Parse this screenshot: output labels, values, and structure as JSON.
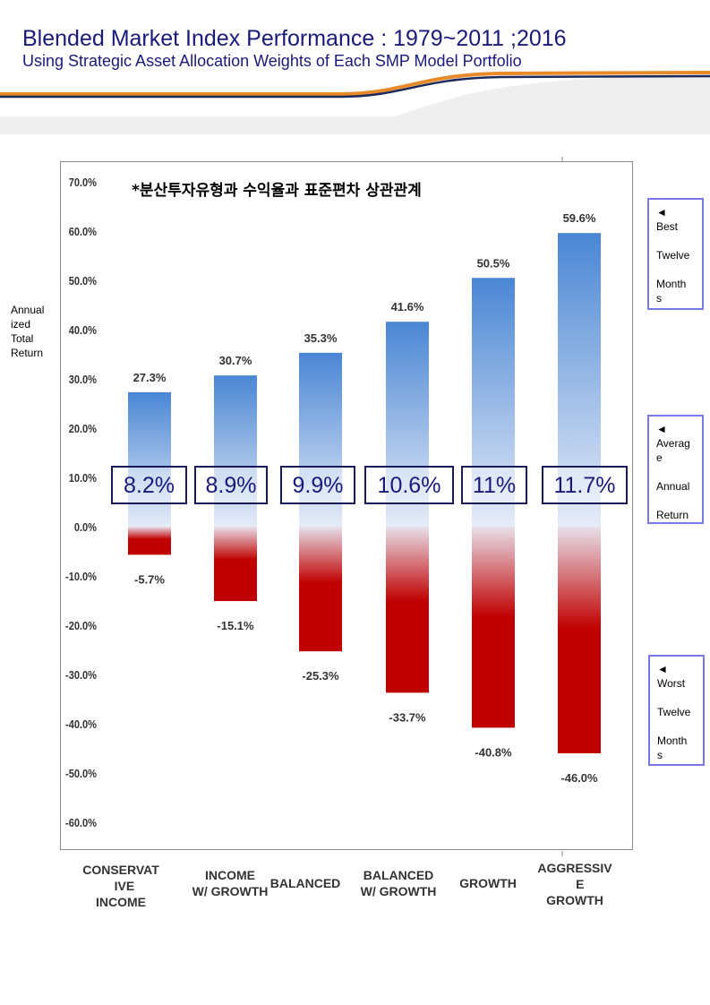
{
  "header": {
    "title": "Blended Market Index Performance : 1979~2011 ;2016",
    "subtitle": "Using Strategic Asset Allocation Weights of Each SMP Model Portfolio"
  },
  "side_labels": {
    "best": [
      "◄",
      "Best",
      "Twelve",
      "Month",
      "s"
    ],
    "average": [
      "◄",
      "Averag",
      "e",
      "Annual",
      "Return"
    ],
    "worst": [
      "◄",
      "Worst",
      "Twelve",
      "Month",
      "s"
    ]
  },
  "chart_data": {
    "type": "bar",
    "title": "*분산투자유형과 수익율과 표준편차 상관관계",
    "ylabel": "Annual ized Total Return",
    "ylim": [
      -60,
      70
    ],
    "yticks": [
      "70.0%",
      "60.0%",
      "50.0%",
      "40.0%",
      "30.0%",
      "20.0%",
      "10.0%",
      "0.0%",
      "-10.0%",
      "-20.0%",
      "-30.0%",
      "-40.0%",
      "-50.0%",
      "-60.0%"
    ],
    "ytick_values": [
      70,
      60,
      50,
      40,
      30,
      20,
      10,
      0,
      -10,
      -20,
      -30,
      -40,
      -50,
      -60
    ],
    "categories": [
      "CONSERVAT\n  IVE\nINCOME",
      "INCOME\nW/ GROWTH",
      "BALANCED",
      "BALANCED\nW/ GROWTH",
      "GROWTH",
      "AGGRESSIV\n   E\nGROWTH"
    ],
    "series": [
      {
        "name": "Best Twelve Months",
        "values": [
          27.3,
          30.7,
          35.3,
          41.6,
          50.5,
          59.6
        ],
        "labels": [
          "27.3%",
          "30.7%",
          "35.3%",
          "41.6%",
          "50.5%",
          "59.6%"
        ],
        "color": "#4a86d4"
      },
      {
        "name": "Worst Twelve Months",
        "values": [
          -5.7,
          -15.1,
          -25.3,
          -33.7,
          -40.8,
          -46.0
        ],
        "labels": [
          "-5.7%",
          "-15.1%",
          "-25.3%",
          "-33.7%",
          "-40.8%",
          "-46.0%"
        ],
        "color": "#c00000"
      },
      {
        "name": "Average Annual Return",
        "values": [
          8.2,
          8.9,
          9.9,
          10.6,
          11,
          11.7
        ],
        "labels": [
          "8.2%",
          "8.9%",
          "9.9%",
          "10.6%",
          "11%",
          "11.7%"
        ]
      }
    ]
  }
}
